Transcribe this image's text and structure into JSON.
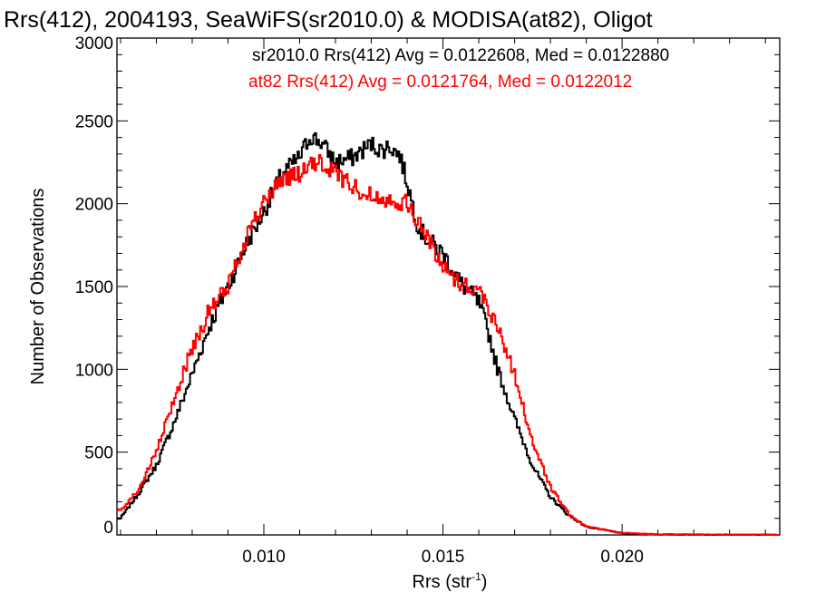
{
  "chart_data": {
    "type": "line",
    "title": "Rrs(412), 2004193, SeaWiFS(sr2010.0) & MODISA(at82), Oligot",
    "xlabel_base": "Rrs (str",
    "xlabel_sup": "-1",
    "xlabel_close": ")",
    "ylabel": "Number of Observations",
    "xlim": [
      0.0059,
      0.0244
    ],
    "ylim": [
      0,
      3000
    ],
    "x_ticks": [
      0.01,
      0.015,
      0.02
    ],
    "x_tick_labels": [
      "0.010",
      "0.015",
      "0.020"
    ],
    "y_ticks": [
      0,
      500,
      1000,
      1500,
      2000,
      2500,
      3000
    ],
    "y_tick_labels": [
      "0",
      "500",
      "1000",
      "1500",
      "2000",
      "2500",
      "3000"
    ],
    "grid": false,
    "annotations": [
      {
        "text": "sr2010.0 Rrs(412) Avg = 0.0122608, Med = 0.0122880",
        "color": "#000000"
      },
      {
        "text": "at82 Rrs(412) Avg = 0.0121764, Med = 0.0122012",
        "color": "#ff0000"
      }
    ],
    "series": [
      {
        "color": "#000000",
        "x": [
          0.006,
          0.0065,
          0.007,
          0.0075,
          0.008,
          0.0085,
          0.009,
          0.0095,
          0.01,
          0.0105,
          0.011,
          0.0113,
          0.0116,
          0.012,
          0.0125,
          0.0128,
          0.013,
          0.0133,
          0.0135,
          0.0138,
          0.014,
          0.0143,
          0.0145,
          0.015,
          0.0155,
          0.016,
          0.0163,
          0.0165,
          0.017,
          0.0175,
          0.018,
          0.0185,
          0.019,
          0.02,
          0.021,
          0.022,
          0.023,
          0.0244
        ],
        "y": [
          100,
          250,
          420,
          680,
          970,
          1270,
          1500,
          1750,
          1950,
          2180,
          2280,
          2410,
          2370,
          2250,
          2280,
          2330,
          2360,
          2320,
          2350,
          2290,
          2130,
          1870,
          1800,
          1700,
          1520,
          1400,
          1200,
          1020,
          700,
          420,
          230,
          120,
          50,
          10,
          3,
          2,
          1,
          1
        ]
      },
      {
        "color": "#ff0000",
        "x": [
          0.006,
          0.0065,
          0.007,
          0.0075,
          0.008,
          0.0085,
          0.009,
          0.0095,
          0.01,
          0.0105,
          0.011,
          0.0115,
          0.012,
          0.0125,
          0.013,
          0.0135,
          0.014,
          0.0145,
          0.015,
          0.0155,
          0.016,
          0.0165,
          0.017,
          0.0175,
          0.018,
          0.0185,
          0.019,
          0.02,
          0.021,
          0.022,
          0.023,
          0.0244
        ],
        "y": [
          150,
          270,
          500,
          820,
          1130,
          1360,
          1500,
          1800,
          2000,
          2150,
          2180,
          2250,
          2190,
          2100,
          2050,
          2030,
          2000,
          1820,
          1620,
          1520,
          1480,
          1280,
          970,
          560,
          290,
          130,
          50,
          12,
          3,
          2,
          1,
          1
        ]
      }
    ]
  }
}
